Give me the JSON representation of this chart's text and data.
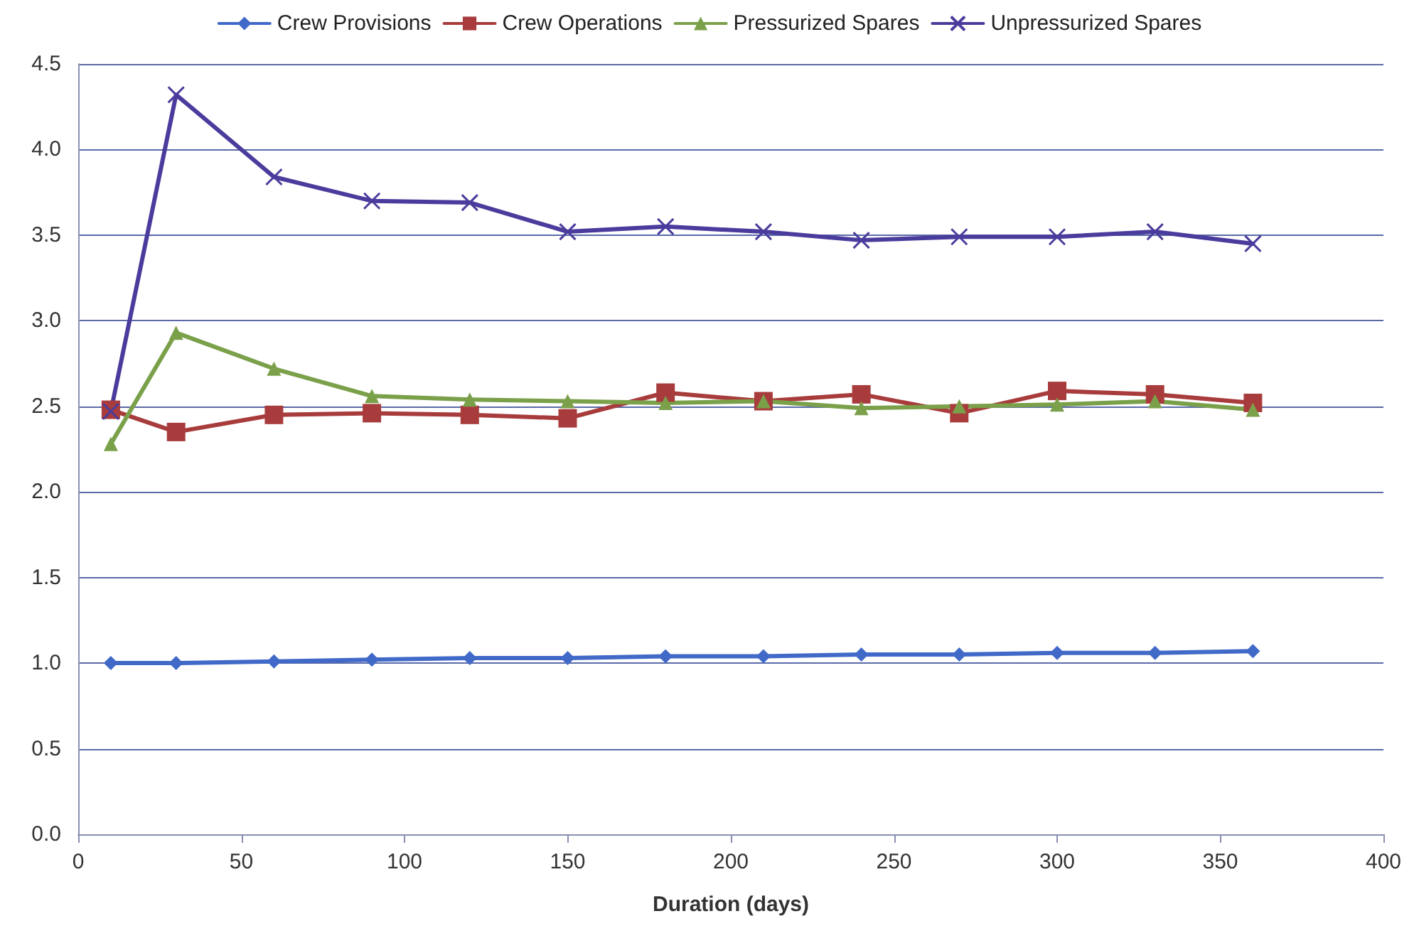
{
  "chart_data": {
    "type": "line",
    "xlabel": "Duration (days)",
    "x": [
      10,
      30,
      60,
      90,
      120,
      150,
      180,
      210,
      240,
      270,
      300,
      330,
      360
    ],
    "series": [
      {
        "name": "Crew Provisions",
        "color": "#4169c8",
        "marker": "diamond",
        "values": [
          1.0,
          1.0,
          1.01,
          1.02,
          1.03,
          1.03,
          1.04,
          1.04,
          1.05,
          1.05,
          1.06,
          1.06,
          1.07
        ]
      },
      {
        "name": "Crew Operations",
        "color": "#a83c3c",
        "marker": "square",
        "values": [
          2.48,
          2.35,
          2.45,
          2.46,
          2.45,
          2.43,
          2.58,
          2.53,
          2.57,
          2.46,
          2.59,
          2.57,
          2.52
        ]
      },
      {
        "name": "Pressurized Spares",
        "color": "#7aa04a",
        "marker": "triangle",
        "values": [
          2.28,
          2.93,
          2.72,
          2.56,
          2.54,
          2.53,
          2.52,
          2.53,
          2.49,
          2.5,
          2.51,
          2.53,
          2.48
        ]
      },
      {
        "name": "Unpressurized Spares",
        "color": "#4a3c9c",
        "marker": "cross",
        "values": [
          2.47,
          4.32,
          3.84,
          3.7,
          3.69,
          3.52,
          3.55,
          3.52,
          3.47,
          3.49,
          3.49,
          3.52,
          3.45
        ]
      }
    ],
    "xlim": [
      0,
      400
    ],
    "xticks": [
      0,
      50,
      100,
      150,
      200,
      250,
      300,
      350,
      400
    ],
    "ylim": [
      0,
      4.5
    ],
    "yticks": [
      {
        "value": 0,
        "label": "0.0"
      },
      {
        "value": 0.5,
        "label": "0.5"
      },
      {
        "value": 1,
        "label": "1.0"
      },
      {
        "value": 1.5,
        "label": "1.5"
      },
      {
        "value": 2,
        "label": "2.0"
      },
      {
        "value": 2.5,
        "label": "2.5"
      },
      {
        "value": 3,
        "label": "3.0"
      },
      {
        "value": 3.5,
        "label": "3.5"
      },
      {
        "value": 4,
        "label": "4.0"
      },
      {
        "value": 4.5,
        "label": "4.5"
      }
    ],
    "grid": "y",
    "legend": "top",
    "line_style": "solid"
  }
}
